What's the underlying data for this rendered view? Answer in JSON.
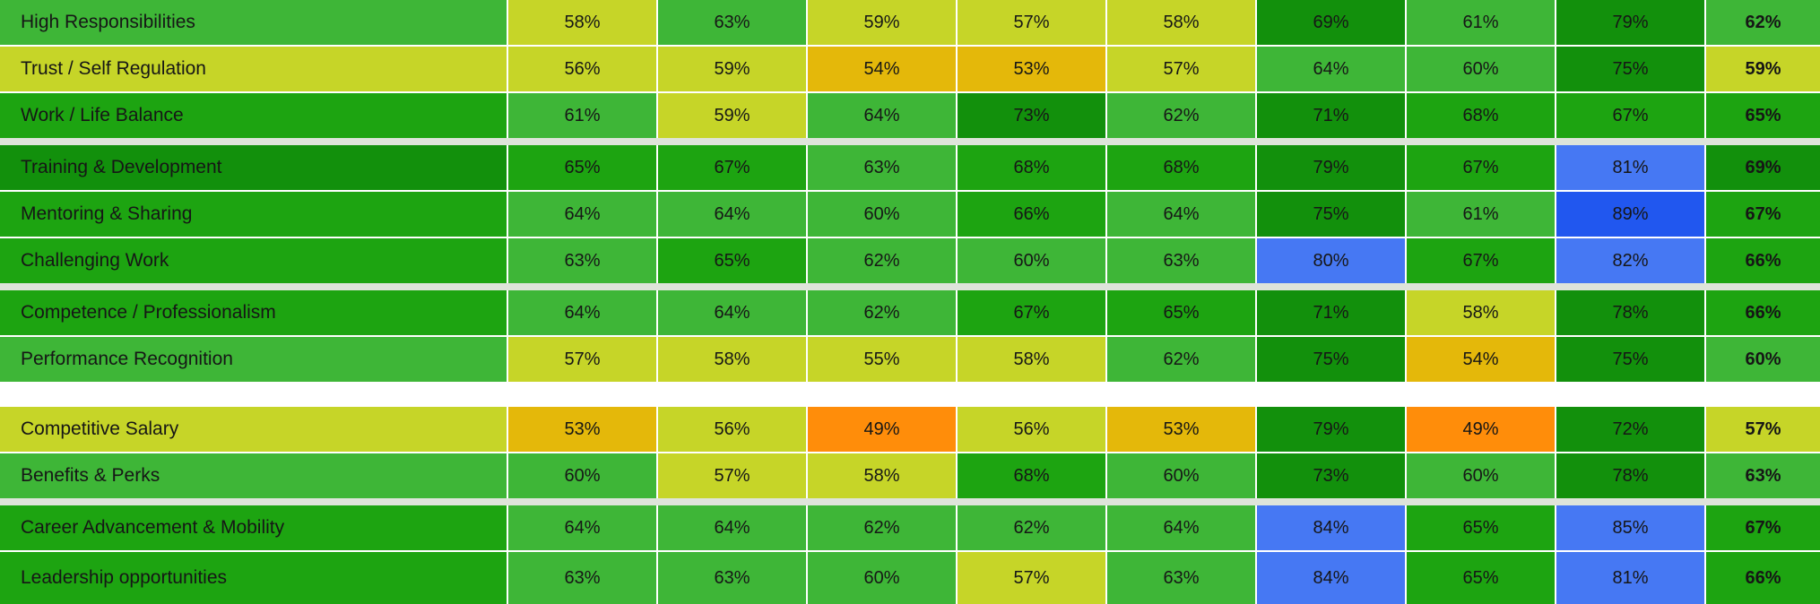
{
  "chart_data": {
    "type": "heatmap",
    "value_suffix": "%",
    "rows": [
      {
        "label": "High Responsibilities",
        "values": [
          58,
          63,
          59,
          57,
          58,
          69,
          61,
          79
        ],
        "total": 62
      },
      {
        "label": "Trust / Self Regulation",
        "values": [
          56,
          59,
          54,
          53,
          57,
          64,
          60,
          75
        ],
        "total": 59
      },
      {
        "label": "Work / Life Balance",
        "values": [
          61,
          59,
          64,
          73,
          62,
          71,
          68,
          67
        ],
        "total": 65
      },
      {
        "label": "Training & Development",
        "values": [
          65,
          67,
          63,
          68,
          68,
          79,
          67,
          81
        ],
        "total": 69
      },
      {
        "label": "Mentoring & Sharing",
        "values": [
          64,
          64,
          60,
          66,
          64,
          75,
          61,
          89
        ],
        "total": 67
      },
      {
        "label": "Challenging Work",
        "values": [
          63,
          65,
          62,
          60,
          63,
          80,
          67,
          82
        ],
        "total": 66
      },
      {
        "label": "Competence / Professionalism",
        "values": [
          64,
          64,
          62,
          67,
          65,
          71,
          58,
          78
        ],
        "total": 66
      },
      {
        "label": "Performance Recognition",
        "values": [
          57,
          58,
          55,
          58,
          62,
          75,
          54,
          75
        ],
        "total": 60
      },
      {
        "label": "Competitive Salary",
        "values": [
          53,
          56,
          49,
          56,
          53,
          79,
          49,
          72
        ],
        "total": 57
      },
      {
        "label": "Benefits & Perks",
        "values": [
          60,
          57,
          58,
          68,
          60,
          73,
          60,
          78
        ],
        "total": 63
      },
      {
        "label": "Career Advancement & Mobility",
        "values": [
          64,
          64,
          62,
          62,
          64,
          84,
          65,
          85
        ],
        "total": 67
      },
      {
        "label": "Leadership opportunities",
        "values": [
          63,
          63,
          60,
          57,
          63,
          84,
          65,
          81
        ],
        "total": 66
      }
    ],
    "separators_after": {
      "2": "group",
      "5": "group",
      "7": "section",
      "9": "group"
    },
    "color_scale": [
      {
        "max": 49,
        "color": "#FF8D0A"
      },
      {
        "max": 54,
        "color": "#E4B80A"
      },
      {
        "max": 59,
        "color": "#C6D528"
      },
      {
        "max": 64,
        "color": "#3EB637"
      },
      {
        "max": 68,
        "color": "#1DA411"
      },
      {
        "max": 79,
        "color": "#12900C"
      },
      {
        "max": 85,
        "color": "#4678F3"
      },
      {
        "max": 100,
        "color": "#2157EF"
      }
    ],
    "layout": {
      "text_color": "#161616",
      "gridline_color": "#FFFFFF",
      "group_separator_color": "#DEE4DA",
      "section_separator_color": "#FFFFFF",
      "legend": "off",
      "column_headers": "none (cropped out of view)"
    }
  }
}
